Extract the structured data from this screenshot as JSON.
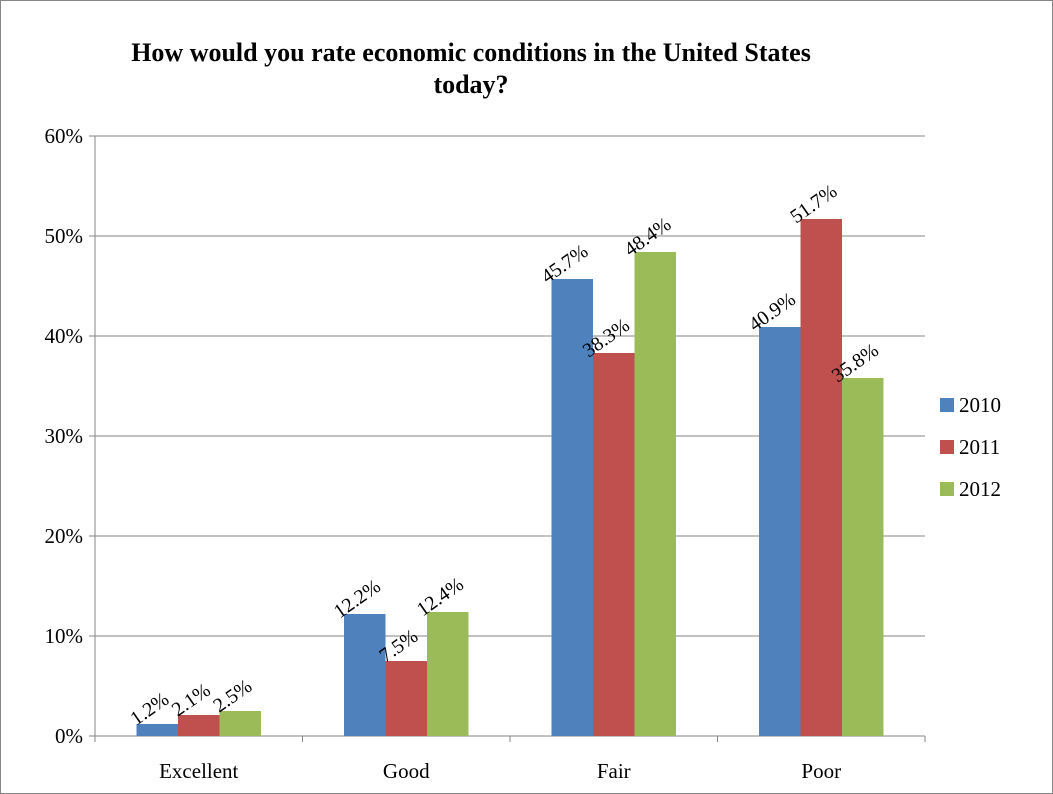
{
  "chart_data": {
    "type": "bar",
    "title": "How would you rate economic conditions in the United States today?",
    "categories": [
      "Excellent",
      "Good",
      "Fair",
      "Poor"
    ],
    "series": [
      {
        "name": "2010",
        "color": "#4F81BD",
        "values": [
          1.2,
          12.2,
          45.7,
          40.9
        ]
      },
      {
        "name": "2011",
        "color": "#C0504D",
        "values": [
          2.1,
          7.5,
          38.3,
          51.7
        ]
      },
      {
        "name": "2012",
        "color": "#9BBB59",
        "values": [
          2.5,
          12.4,
          48.4,
          35.8
        ]
      }
    ],
    "data_labels": [
      [
        "1.2%",
        "12.2%",
        "45.7%",
        "40.9%"
      ],
      [
        "2.1%",
        "7.5%",
        "38.3%",
        "51.7%"
      ],
      [
        "2.5%",
        "12.4%",
        "48.4%",
        "35.8%"
      ]
    ],
    "ylim": [
      0,
      60
    ],
    "yticks": [
      0,
      10,
      20,
      30,
      40,
      50,
      60
    ],
    "ytick_labels": [
      "0%",
      "10%",
      "20%",
      "30%",
      "40%",
      "50%",
      "60%"
    ],
    "grid": true,
    "legend_position": "right",
    "xlabel": "",
    "ylabel": ""
  }
}
